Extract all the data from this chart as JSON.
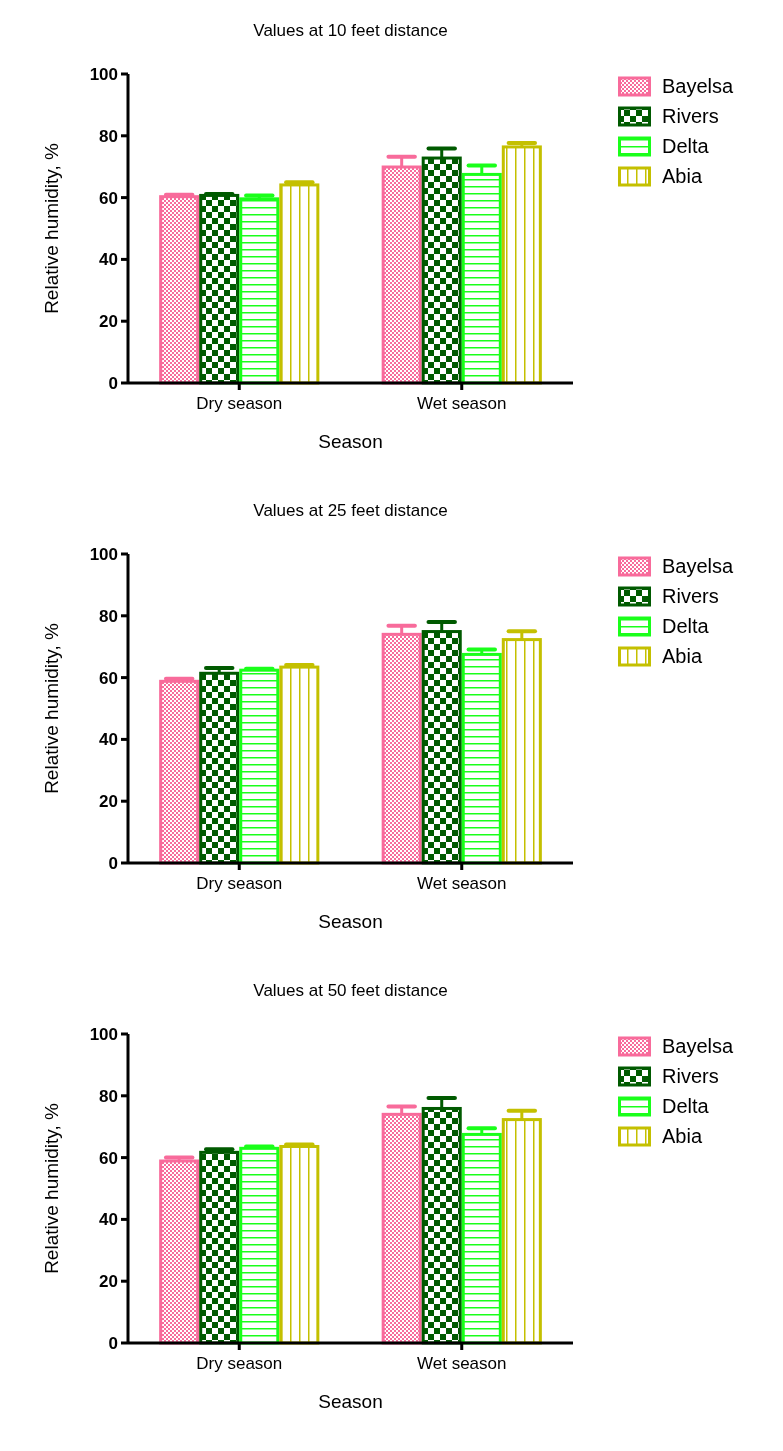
{
  "chart_data": [
    {
      "type": "bar",
      "title": "Values at 10 feet distance",
      "xlabel": "Season",
      "ylabel": "Relative humidity, %",
      "categories": [
        "Dry season",
        "Wet season"
      ],
      "ylim": [
        0,
        100
      ],
      "yticks": [
        0,
        20,
        40,
        60,
        80,
        100
      ],
      "legend": "top right",
      "series": [
        {
          "name": "Bayelsa",
          "color": "#f86b9b",
          "values": [
            60.3,
            69.9
          ],
          "errors": [
            0.6,
            3.3
          ]
        },
        {
          "name": "Rivers",
          "color": "#005a00",
          "values": [
            60.7,
            72.8
          ],
          "errors": [
            0.5,
            3.1
          ]
        },
        {
          "name": "Delta",
          "color": "#1aff1a",
          "values": [
            59.6,
            67.5
          ],
          "errors": [
            1.1,
            2.9
          ]
        },
        {
          "name": "Abia",
          "color": "#c4c000",
          "values": [
            64.1,
            76.4
          ],
          "errors": [
            0.9,
            1.3
          ]
        }
      ]
    },
    {
      "type": "bar",
      "title": "Values at 25 feet distance",
      "xlabel": "Season",
      "ylabel": "Relative humidity, %",
      "categories": [
        "Dry season",
        "Wet season"
      ],
      "ylim": [
        0,
        100
      ],
      "yticks": [
        0,
        20,
        40,
        60,
        80,
        100
      ],
      "legend": "top right",
      "series": [
        {
          "name": "Bayelsa",
          "color": "#f86b9b",
          "values": [
            58.8,
            74.0
          ],
          "errors": [
            0.8,
            2.8
          ]
        },
        {
          "name": "Rivers",
          "color": "#005a00",
          "values": [
            61.4,
            74.9
          ],
          "errors": [
            1.7,
            3.1
          ]
        },
        {
          "name": "Delta",
          "color": "#1aff1a",
          "values": [
            62.4,
            67.5
          ],
          "errors": [
            0.5,
            1.6
          ]
        },
        {
          "name": "Abia",
          "color": "#c4c000",
          "values": [
            63.4,
            72.3
          ],
          "errors": [
            0.7,
            2.7
          ]
        }
      ]
    },
    {
      "type": "bar",
      "title": "Values at 50 feet distance",
      "xlabel": "Season",
      "ylabel": "Relative humidity, %",
      "categories": [
        "Dry season",
        "Wet season"
      ],
      "ylim": [
        0,
        100
      ],
      "yticks": [
        0,
        20,
        40,
        60,
        80,
        100
      ],
      "legend": "top right",
      "series": [
        {
          "name": "Bayelsa",
          "color": "#f86b9b",
          "values": [
            58.9,
            74.0
          ],
          "errors": [
            1.1,
            2.5
          ]
        },
        {
          "name": "Rivers",
          "color": "#005a00",
          "values": [
            61.7,
            75.9
          ],
          "errors": [
            1.0,
            3.4
          ]
        },
        {
          "name": "Delta",
          "color": "#1aff1a",
          "values": [
            63.0,
            67.5
          ],
          "errors": [
            0.6,
            2.0
          ]
        },
        {
          "name": "Abia",
          "color": "#c4c000",
          "values": [
            63.6,
            72.3
          ],
          "errors": [
            0.6,
            2.9
          ]
        }
      ]
    }
  ]
}
